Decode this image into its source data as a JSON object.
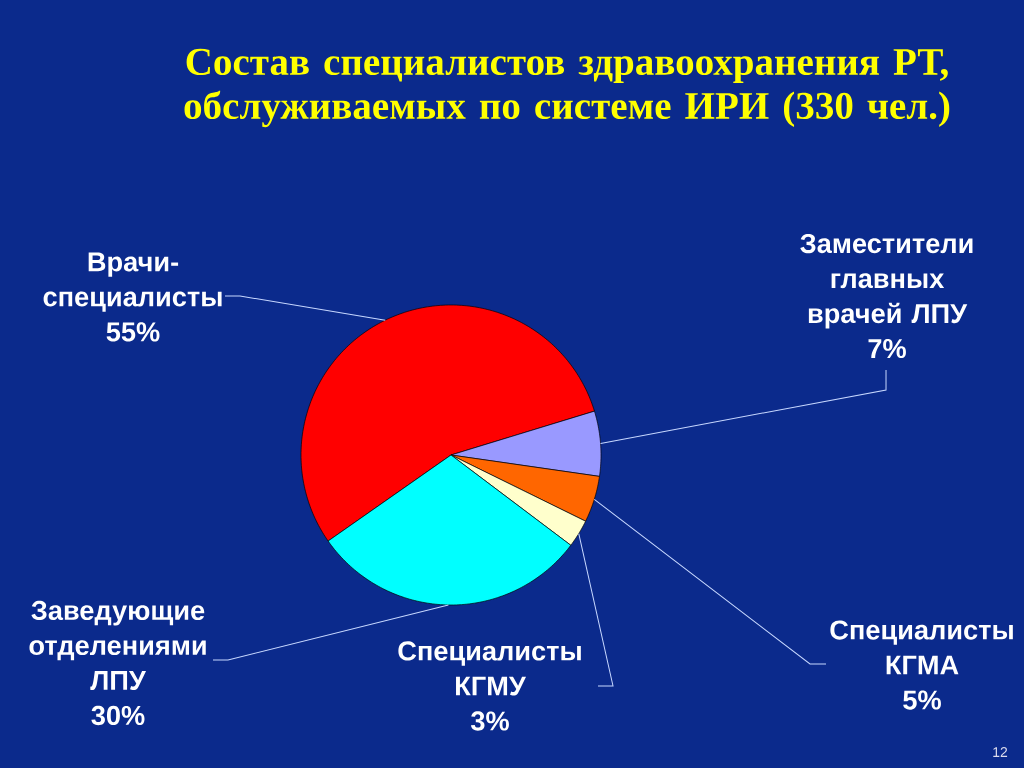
{
  "chart_data": {
    "type": "pie",
    "title": "Состав специалистов здравоохранения РТ, обслуживаемых по системе ИРИ (330 чел.)",
    "categories": [
      "Врачи-специалисты",
      "Заместители главных врачей ЛПУ",
      "Специалисты КГМА",
      "Специалисты КГМУ",
      "Заведующие отделениями ЛПУ"
    ],
    "values": [
      55,
      7,
      5,
      3,
      30
    ],
    "colors": [
      "#ff0000",
      "#9999ff",
      "#ff6600",
      "#ffffcc",
      "#00ffff"
    ],
    "value_labels": [
      "55%",
      "7%",
      "5%",
      "3%",
      "30%"
    ],
    "annotations": [
      "12"
    ]
  }
}
